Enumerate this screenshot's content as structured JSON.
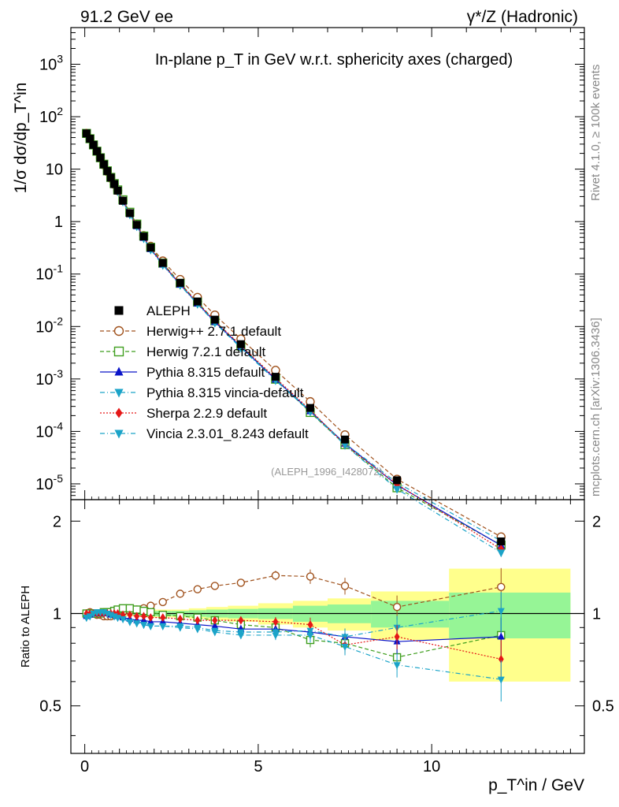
{
  "header": {
    "left": "91.2 GeV ee",
    "right": "γ*/Z (Hadronic)"
  },
  "sidebar": {
    "rivet": "Rivet 4.1.0, ≥ 100k events",
    "mcplots": "mcplots.cern.ch [arXiv:1306.3436]"
  },
  "chart_data": {
    "type": "line",
    "title": "In-plane p_T in GeV w.r.t. sphericity axes (charged)",
    "analysis_id": "(ALEPH_1996_I428072)",
    "ylabel": "1/σ dσ/dp_T^in",
    "ratio_ylabel": "Ratio to ALEPH",
    "xlabel": "p_T^in / GeV",
    "xlim": [
      -0.4,
      14.4
    ],
    "ylim_log": [
      5e-06,
      5000
    ],
    "ratio_ylim": [
      0.35,
      2.35
    ],
    "x_ticks": [
      "0",
      "5",
      "10"
    ],
    "y_ticks": [
      "10^-5",
      "10^-4",
      "10^-3",
      "10^-2",
      "10^-1",
      "1",
      "10",
      "10^2",
      "10^3"
    ],
    "ratio_ticks": [
      "0.5",
      "1",
      "2"
    ],
    "x": [
      0.05,
      0.15,
      0.25,
      0.35,
      0.45,
      0.55,
      0.65,
      0.75,
      0.85,
      0.95,
      1.1,
      1.3,
      1.5,
      1.7,
      1.9,
      2.25,
      2.75,
      3.25,
      3.75,
      4.5,
      5.5,
      6.5,
      7.5,
      9.0,
      12.0
    ],
    "data": {
      "name": "ALEPH",
      "values": [
        48,
        38,
        29,
        22,
        16.5,
        12.3,
        9.2,
        6.9,
        5.2,
        3.9,
        2.5,
        1.45,
        0.87,
        0.52,
        0.32,
        0.163,
        0.068,
        0.03,
        0.0135,
        0.0046,
        0.0011,
        0.00028,
        7e-05,
        1.17e-05,
        8e-07
      ],
      "uncert_inner": [
        0.01,
        0.01,
        0.01,
        0.01,
        0.01,
        0.01,
        0.01,
        0.01,
        0.01,
        0.01,
        0.01,
        0.01,
        0.015,
        0.015,
        0.02,
        0.02,
        0.02,
        0.025,
        0.03,
        0.035,
        0.04,
        0.06,
        0.07,
        0.1,
        0.17
      ],
      "uncert_outer": [
        0.015,
        0.015,
        0.015,
        0.015,
        0.015,
        0.015,
        0.015,
        0.015,
        0.015,
        0.02,
        0.02,
        0.02,
        0.02,
        0.025,
        0.03,
        0.03,
        0.03,
        0.04,
        0.05,
        0.06,
        0.08,
        0.1,
        0.12,
        0.18,
        0.4
      ]
    },
    "series": [
      {
        "name": "Herwig++ 2.7.1 default",
        "color": "#a0521d",
        "marker": "circle-open",
        "dash": "5,3",
        "ratio": [
          1.0,
          1.01,
          1.0,
          0.99,
          0.99,
          0.98,
          0.98,
          0.98,
          0.99,
          1.0,
          1.01,
          1.02,
          1.03,
          1.04,
          1.06,
          1.09,
          1.16,
          1.2,
          1.23,
          1.26,
          1.33,
          1.32,
          1.23,
          1.05,
          1.22
        ]
      },
      {
        "name": "Herwig 7.2.1 default",
        "color": "#3f9e1e",
        "marker": "square-open",
        "dash": "5,3",
        "ratio": [
          1.0,
          1.0,
          1.0,
          1.0,
          1.0,
          1.01,
          1.01,
          1.01,
          1.02,
          1.03,
          1.04,
          1.04,
          1.03,
          1.02,
          1.01,
          0.99,
          0.98,
          0.97,
          0.95,
          0.92,
          0.9,
          0.82,
          0.8,
          0.72,
          0.85
        ]
      },
      {
        "name": "Pythia 8.315 default",
        "color": "#0a14c8",
        "marker": "triangle-up",
        "dash": "",
        "ratio": [
          0.98,
          0.99,
          1.0,
          1.0,
          1.0,
          1.0,
          1.0,
          0.99,
          0.99,
          0.98,
          0.97,
          0.96,
          0.95,
          0.95,
          0.94,
          0.94,
          0.93,
          0.92,
          0.91,
          0.89,
          0.89,
          0.87,
          0.84,
          0.81,
          0.84
        ]
      },
      {
        "name": "Pythia 8.315 vincia-default",
        "color": "#1aa3c8",
        "marker": "triangle-down",
        "dash": "6,3,1,3",
        "ratio": [
          0.97,
          0.98,
          1.0,
          1.01,
          1.01,
          1.01,
          1.0,
          0.99,
          0.98,
          0.97,
          0.96,
          0.94,
          0.93,
          0.92,
          0.91,
          0.91,
          0.91,
          0.9,
          0.88,
          0.87,
          0.87,
          0.88,
          0.84,
          0.9,
          1.02
        ]
      },
      {
        "name": "Sherpa 2.2.9 default",
        "color": "#e51717",
        "marker": "diamond",
        "dash": "2,2",
        "ratio": [
          1.0,
          1.0,
          1.0,
          1.0,
          1.0,
          1.0,
          1.0,
          1.0,
          1.0,
          1.0,
          0.99,
          0.99,
          0.98,
          0.98,
          0.97,
          0.97,
          0.96,
          0.95,
          0.95,
          0.95,
          0.94,
          0.92,
          0.79,
          0.84,
          0.71
        ]
      },
      {
        "name": "Vincia 2.3.01_8.243 default",
        "color": "#1aa3c8",
        "marker": "triangle-down",
        "dash": "6,3,1,3",
        "ratio": [
          0.97,
          0.98,
          1.0,
          1.01,
          1.01,
          1.01,
          1.0,
          0.99,
          0.98,
          0.97,
          0.96,
          0.94,
          0.93,
          0.92,
          0.91,
          0.91,
          0.9,
          0.89,
          0.87,
          0.85,
          0.85,
          0.85,
          0.78,
          0.68,
          0.61
        ]
      }
    ],
    "legend_position": "middle-left",
    "data_legend_color": "#000000"
  }
}
